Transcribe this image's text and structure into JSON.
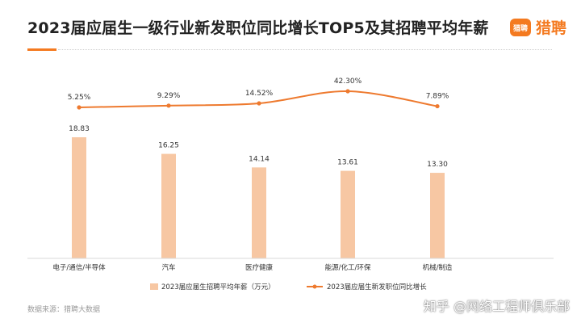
{
  "header": {
    "title": "2023届应届生一级行业新发职位同比增长TOP5及其招聘平均年薪",
    "brand_logo_text": "猎聘",
    "brand_name": "猎聘"
  },
  "footer": {
    "source": "数据来源：猎聘大数据",
    "watermark": "知乎 @网络工程师俱乐部"
  },
  "colors": {
    "bar": "#f7c7a3",
    "line": "#ee7a2f",
    "accent": "#f47a20"
  },
  "chart_data": {
    "type": "bar",
    "title": "2023届应届生一级行业新发职位同比增长TOP5及其招聘平均年薪",
    "categories": [
      "电子/通信/半导体",
      "汽车",
      "医疗健康",
      "能源/化工/环保",
      "机械/制造"
    ],
    "series": [
      {
        "name": "2023届应届生招聘平均年薪（万元）",
        "type": "bar",
        "values": [
          18.83,
          16.25,
          14.14,
          13.61,
          13.3
        ],
        "labels": [
          "18.83",
          "16.25",
          "14.14",
          "13.61",
          "13.30"
        ]
      },
      {
        "name": "2023届应届生新发职位同比增长",
        "type": "line",
        "values": [
          5.25,
          9.29,
          14.52,
          42.3,
          7.89
        ],
        "labels": [
          "5.25%",
          "9.29%",
          "14.52%",
          "42.30%",
          "7.89%"
        ]
      }
    ],
    "legend_position": "bottom",
    "grid": false
  }
}
